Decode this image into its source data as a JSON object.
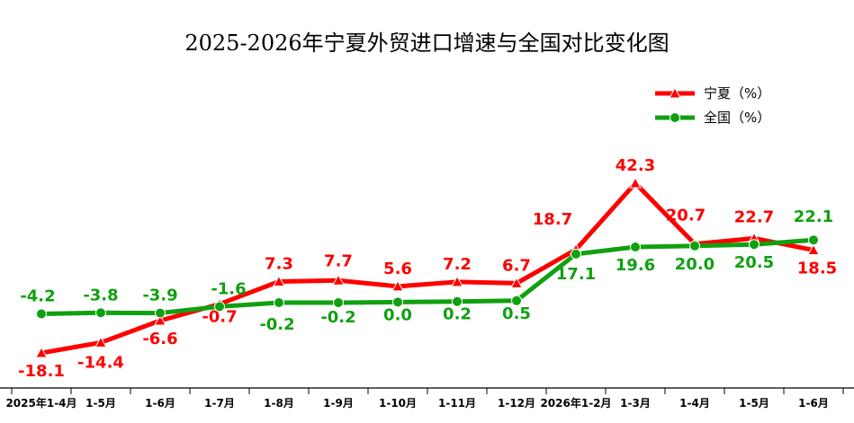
{
  "chart_data": {
    "type": "line",
    "title": "2025-2026年宁夏外贸进口增速与全国对比变化图",
    "categories": [
      "2025年1-4月",
      "1-5月",
      "1-6月",
      "1-7月",
      "1-8月",
      "1-9月",
      "1-10月",
      "1-11月",
      "1-12月",
      "2026年1-2月",
      "1-3月",
      "1-4月",
      "1-5月",
      "1-6月"
    ],
    "series": [
      {
        "name": "宁夏（%）",
        "color": "#ff0000",
        "marker": "triangle",
        "values": [
          -18.1,
          -14.4,
          -6.6,
          -0.7,
          7.3,
          7.7,
          5.6,
          7.2,
          6.7,
          18.7,
          42.3,
          20.7,
          22.7,
          18.5
        ],
        "labels": [
          "-18.1",
          "-14.4",
          "-6.6",
          "-0.7",
          "7.3",
          "7.7",
          "5.6",
          "7.2",
          "6.7",
          "18.7",
          "42.3",
          "20.7",
          "22.7",
          "18.5"
        ]
      },
      {
        "name": "全国（%）",
        "color": "#10a010",
        "marker": "circle",
        "values": [
          -4.2,
          -3.8,
          -3.9,
          -1.6,
          -0.2,
          -0.2,
          0.0,
          0.2,
          0.5,
          17.1,
          19.6,
          20.0,
          20.5,
          22.1
        ],
        "labels": [
          "-4.2",
          "-3.8",
          "-3.9",
          "-1.6",
          "-0.2",
          "-0.2",
          "0.0",
          "0.2",
          "0.5",
          "17.1",
          "19.6",
          "20.0",
          "20.5",
          "22.1"
        ]
      }
    ],
    "legend": "top-right",
    "grid": false
  }
}
